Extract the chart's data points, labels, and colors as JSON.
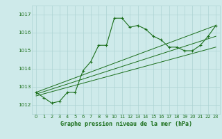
{
  "title": "Graphe pression niveau de la mer (hPa)",
  "background_color": "#ceeaea",
  "grid_color": "#aed4d4",
  "line_color": "#1a6e1a",
  "label_color": "#1a6e1a",
  "xlim": [
    -0.5,
    23.5
  ],
  "ylim": [
    1011.5,
    1017.5
  ],
  "yticks": [
    1012,
    1013,
    1014,
    1015,
    1016,
    1017
  ],
  "xticks": [
    0,
    1,
    2,
    3,
    4,
    5,
    6,
    7,
    8,
    9,
    10,
    11,
    12,
    13,
    14,
    15,
    16,
    17,
    18,
    19,
    20,
    21,
    22,
    23
  ],
  "series_main": {
    "x": [
      0,
      1,
      2,
      3,
      4,
      5,
      6,
      7,
      8,
      9,
      10,
      11,
      12,
      13,
      14,
      15,
      16,
      17,
      18,
      19,
      20,
      21,
      22,
      23
    ],
    "y": [
      1012.7,
      1012.4,
      1012.1,
      1012.2,
      1012.7,
      1012.7,
      1013.9,
      1014.4,
      1015.3,
      1015.3,
      1016.8,
      1016.8,
      1016.3,
      1016.4,
      1016.2,
      1015.8,
      1015.6,
      1015.2,
      1015.2,
      1015.0,
      1015.0,
      1015.3,
      1015.8,
      1016.4
    ]
  },
  "line1": {
    "x": [
      0,
      23
    ],
    "y": [
      1012.7,
      1016.4
    ]
  },
  "line2": {
    "x": [
      0,
      23
    ],
    "y": [
      1012.6,
      1015.8
    ]
  },
  "line3": {
    "x": [
      0,
      23
    ],
    "y": [
      1012.5,
      1015.2
    ]
  }
}
